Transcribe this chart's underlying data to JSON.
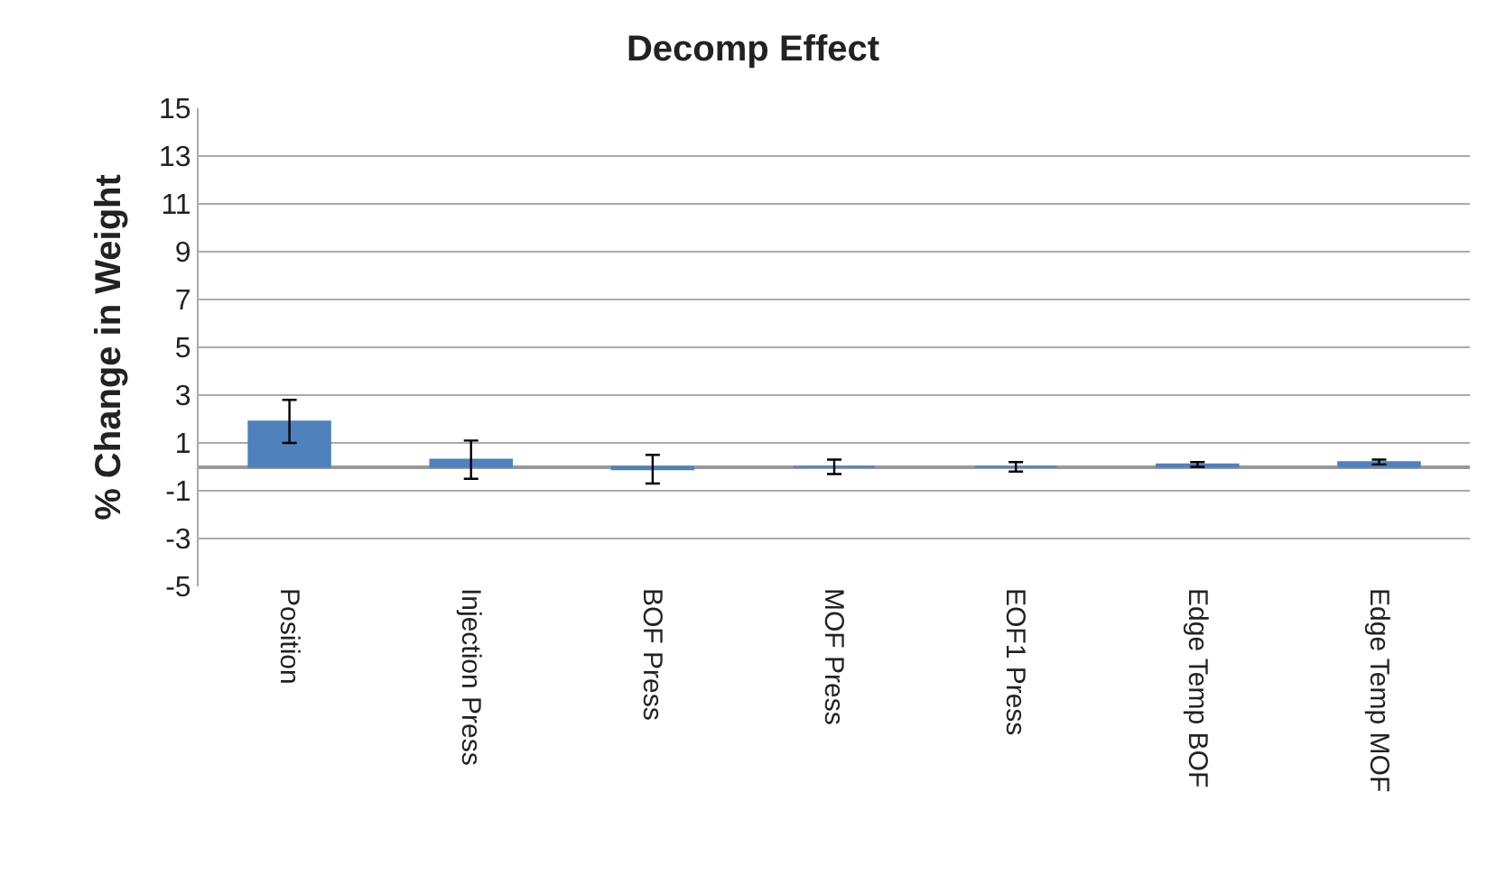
{
  "chart_data": {
    "type": "bar",
    "title": "Decomp Effect",
    "ylabel": "% Change in Weight",
    "categories": [
      "Position",
      "Injection Press",
      "BOF Press",
      "MOF Press",
      "EOF1 Press",
      "Edge Temp BOF",
      "Edge Temp MOF"
    ],
    "values": [
      1.9,
      0.3,
      -0.1,
      0.0,
      0.0,
      0.1,
      0.2
    ],
    "errors": [
      0.9,
      0.8,
      0.6,
      0.3,
      0.2,
      0.1,
      0.1
    ],
    "color": "#4f81bd",
    "ylim": [
      -5,
      15
    ],
    "yticks": [
      -5,
      -3,
      -1,
      1,
      3,
      5,
      7,
      9,
      11,
      13,
      15
    ],
    "grid": "y"
  }
}
